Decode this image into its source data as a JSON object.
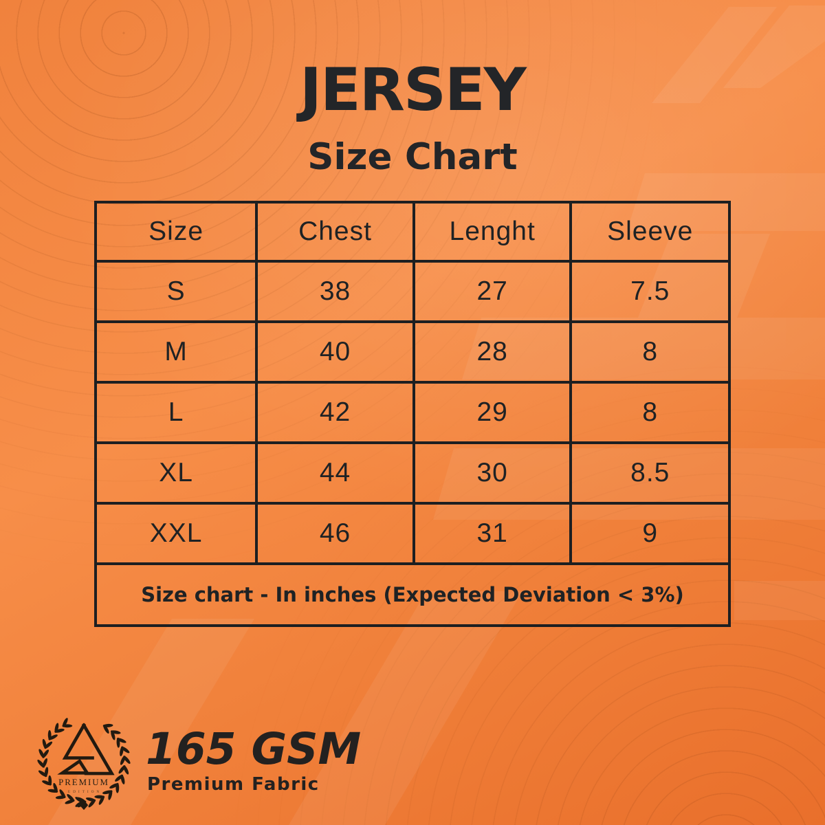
{
  "header": {
    "title": "JERSEY",
    "subtitle": "Size Chart"
  },
  "chart_data": {
    "type": "table",
    "title": "JERSEY Size Chart",
    "columns": [
      "Size",
      "Chest",
      "Lenght",
      "Sleeve"
    ],
    "rows": [
      [
        "S",
        "38",
        "27",
        "7.5"
      ],
      [
        "M",
        "40",
        "28",
        "8"
      ],
      [
        "L",
        "42",
        "29",
        "8"
      ],
      [
        "XL",
        "44",
        "30",
        "8.5"
      ],
      [
        "XXL",
        "46",
        "31",
        "9"
      ]
    ],
    "units": "inches",
    "note": "Size chart - In inches (Expected Deviation < 3%)"
  },
  "branding": {
    "badge_title": "PREMIUM",
    "badge_subtitle": "EDITION",
    "weight": "165 GSM",
    "fabric": "Premium Fabric"
  },
  "colors": {
    "background_orange": "#f0823d",
    "background_light": "#f78e49",
    "background_deep": "#e96f2b",
    "ink": "#212326",
    "contour_line": "#7a340a",
    "watermark": "#ffffff"
  }
}
